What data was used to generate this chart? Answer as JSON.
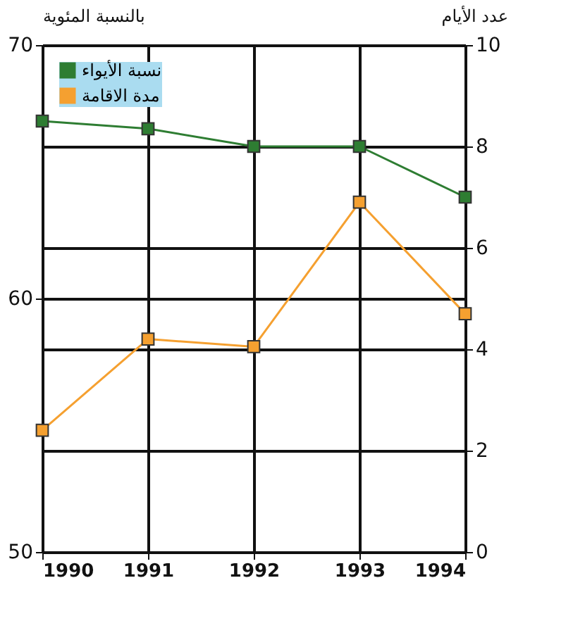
{
  "chart_data": {
    "type": "line",
    "ylabel": "بالنسبة المئوية",
    "y2label": "عدد الأيام",
    "x": [
      1990,
      1991,
      1992,
      1993,
      1994
    ],
    "xlim": [
      1990,
      1994
    ],
    "xticks": [
      1990,
      1991,
      1992,
      1993,
      1994
    ],
    "ylim": [
      50,
      70
    ],
    "yticks": [
      50,
      60,
      70
    ],
    "y2lim": [
      0,
      10
    ],
    "y2ticks": [
      0,
      2,
      4,
      6,
      8,
      10
    ],
    "series": [
      {
        "name": "نسبة الأيواء",
        "color": "#2e7d32",
        "values": [
          67.0,
          66.7,
          66.0,
          66.0,
          64.0
        ]
      },
      {
        "name": "مدة الاقامة",
        "color": "#f5a030",
        "axis": "y2",
        "values": [
          2.4,
          4.2,
          4.05,
          6.9,
          4.7
        ]
      }
    ],
    "grid": true,
    "legend": "top left",
    "marker": "square",
    "line_style": "solid"
  }
}
